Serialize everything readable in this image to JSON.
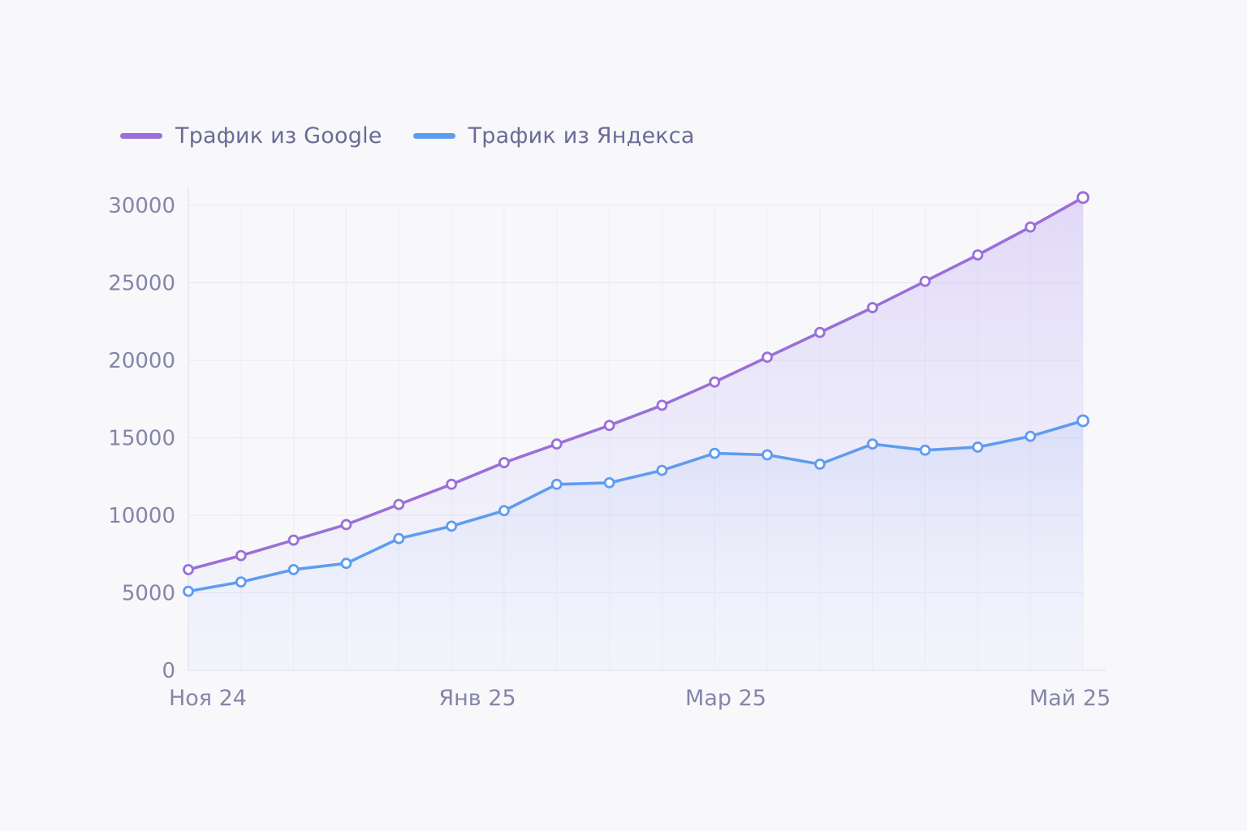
{
  "chart_data": {
    "type": "line",
    "title": "",
    "xlabel": "",
    "ylabel": "",
    "ylim": [
      0,
      30000
    ],
    "yticks": [
      "0",
      "5000",
      "10000",
      "15000",
      "20000",
      "25000",
      "30000"
    ],
    "x_tick_labels": [
      {
        "index": 0,
        "label": "Ноя 24"
      },
      {
        "index": 5,
        "label": "Янв 25"
      },
      {
        "index": 10,
        "label": "Мар 25"
      },
      {
        "index": 17,
        "label": "Май 25"
      }
    ],
    "series": [
      {
        "name": "Трафик из Google",
        "color": "#9b6fd8",
        "values": [
          6500,
          7400,
          8400,
          9400,
          10700,
          12000,
          13400,
          14600,
          15800,
          17100,
          18600,
          20200,
          21800,
          23400,
          25100,
          26800,
          28600,
          30500
        ]
      },
      {
        "name": "Трафик из Яндекса",
        "color": "#5f9cef",
        "values": [
          5100,
          5700,
          6500,
          6900,
          8500,
          9300,
          10300,
          12000,
          12100,
          12900,
          14000,
          13900,
          13300,
          14600,
          14200,
          14400,
          15100,
          16100
        ]
      }
    ],
    "grid": true,
    "legend": "top-left"
  }
}
